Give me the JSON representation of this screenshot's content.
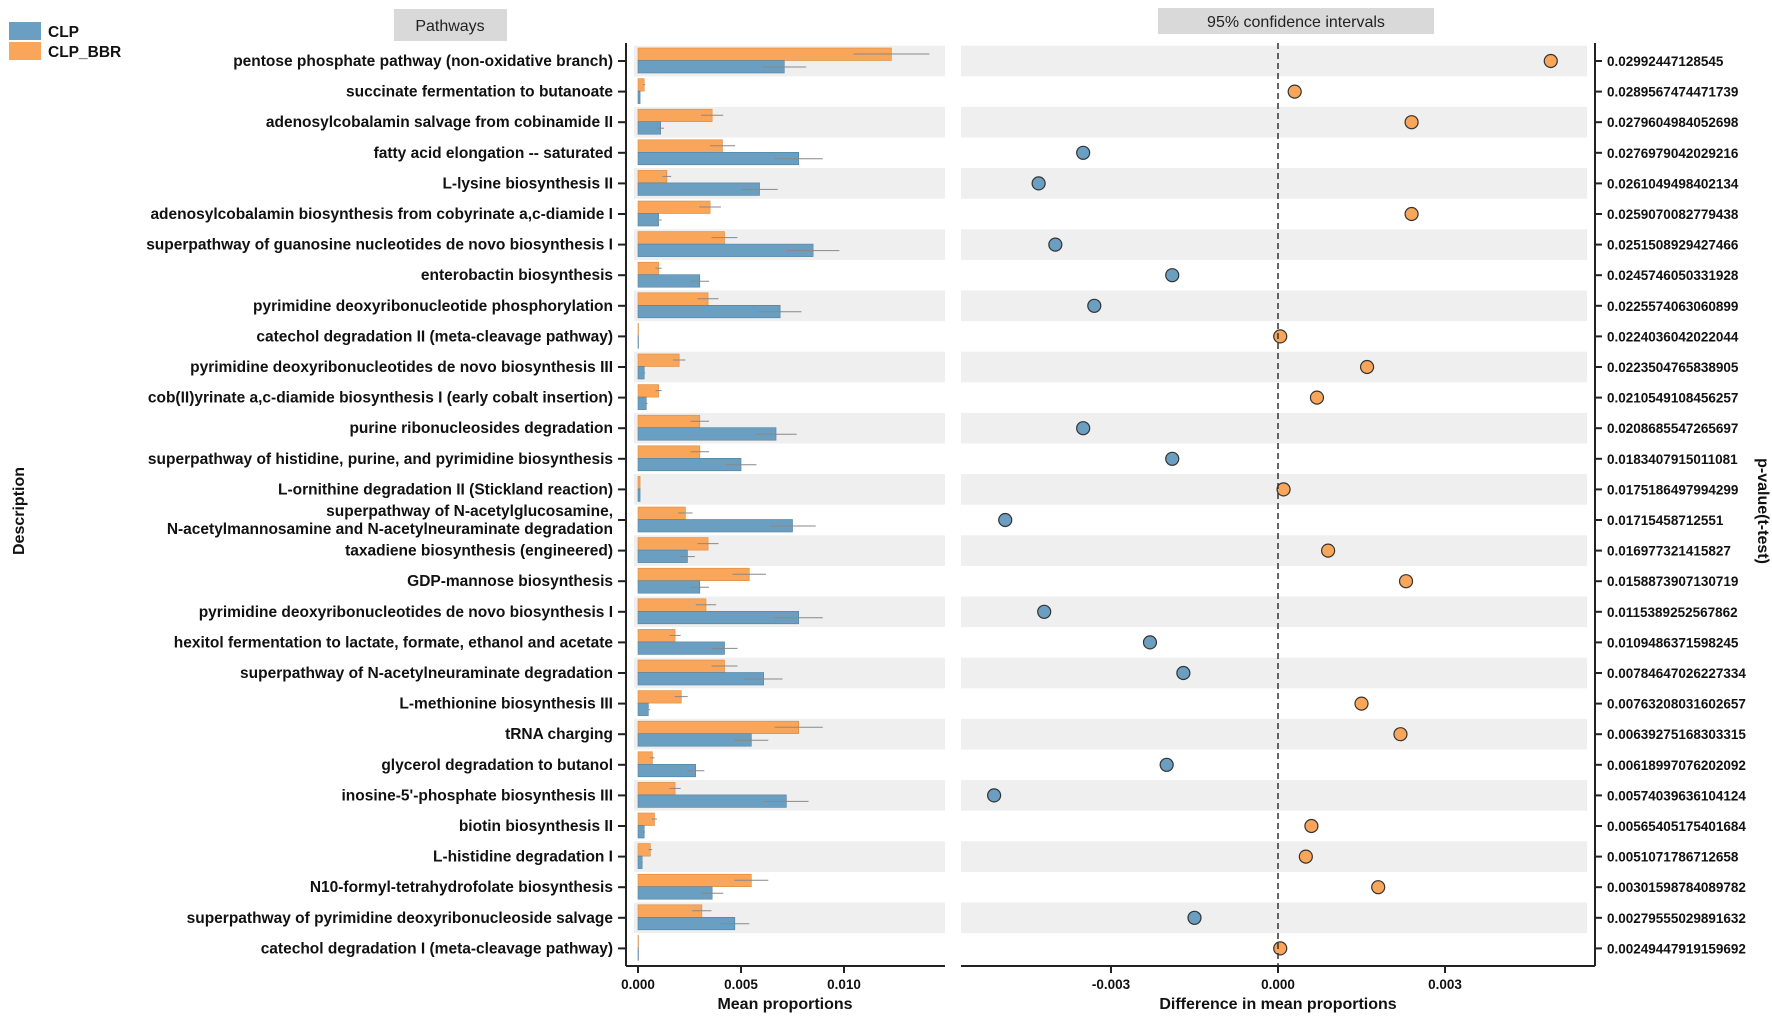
{
  "chart_data": {
    "type": "bar",
    "subtype": "extended-error-bar",
    "panel_headers": {
      "left": "Pathways",
      "right": "95% confidence intervals"
    },
    "legend": [
      {
        "name": "CLP",
        "color": "#6b9fc1"
      },
      {
        "name": "CLP_BBR",
        "color": "#f9a65a"
      }
    ],
    "ylabel": "Description",
    "left_xlabel": "Mean proportions",
    "left_xticks": [
      "0.000",
      "0.005",
      "0.010"
    ],
    "left_tick_values": [
      0,
      0.005,
      0.01
    ],
    "left_xlim": [
      0,
      0.0148
    ],
    "right_xlabel": "Difference in mean proportions",
    "right_xticks": [
      "-0.003",
      "0.000",
      "0.003"
    ],
    "right_tick_values": [
      -0.003,
      0,
      0.003
    ],
    "right_xlim": [
      -0.0056,
      0.0057
    ],
    "right_ylabel": "p-value(t-test)",
    "categories": [
      "pentose phosphate pathway (non-oxidative branch)",
      "succinate fermentation to butanoate",
      "adenosylcobalamin salvage from cobinamide II",
      "fatty acid elongation -- saturated",
      "L-lysine biosynthesis II",
      "adenosylcobalamin biosynthesis from cobyrinate a,c-diamide I",
      "superpathway of guanosine nucleotides de novo biosynthesis I",
      "enterobactin biosynthesis",
      "pyrimidine deoxyribonucleotide phosphorylation",
      "catechol degradation II (meta-cleavage pathway)",
      "pyrimidine deoxyribonucleotides de novo biosynthesis III",
      "cob(II)yrinate a,c-diamide biosynthesis I (early cobalt insertion)",
      "purine ribonucleosides degradation",
      "superpathway of histidine, purine, and pyrimidine biosynthesis",
      "L-ornithine degradation II (Stickland reaction)",
      "superpathway of N-acetylglucosamine,\nN-acetylmannosamine and N-acetylneuraminate degradation",
      "taxadiene biosynthesis (engineered)",
      "GDP-mannose biosynthesis",
      "pyrimidine deoxyribonucleotides de novo biosynthesis I",
      "hexitol fermentation to lactate, formate, ethanol and acetate",
      "superpathway of N-acetylneuraminate degradation",
      "L-methionine biosynthesis III",
      "tRNA charging",
      "glycerol degradation to butanol",
      "inosine-5'-phosphate biosynthesis III",
      "biotin biosynthesis II",
      "L-histidine degradation I",
      "N10-formyl-tetrahydrofolate biosynthesis",
      "superpathway of pyrimidine deoxyribonucleoside salvage",
      "catechol degradation I (meta-cleavage pathway)"
    ],
    "series": [
      {
        "name": "CLP_BBR",
        "values": [
          0.0123,
          0.0003,
          0.0036,
          0.0041,
          0.0014,
          0.0035,
          0.0042,
          0.001,
          0.0034,
          2e-05,
          0.002,
          0.001,
          0.003,
          0.003,
          0.0001,
          0.0023,
          0.0034,
          0.0054,
          0.0033,
          0.0018,
          0.0042,
          0.0021,
          0.0078,
          0.0007,
          0.0018,
          0.0008,
          0.0006,
          0.0055,
          0.0031,
          2e-05
        ]
      },
      {
        "name": "CLP",
        "values": [
          0.0071,
          0.0001,
          0.0011,
          0.0078,
          0.0059,
          0.001,
          0.0085,
          0.003,
          0.0069,
          2e-05,
          0.0003,
          0.0004,
          0.0067,
          0.005,
          0.0001,
          0.0075,
          0.0024,
          0.003,
          0.0078,
          0.0042,
          0.0061,
          0.0005,
          0.0055,
          0.0028,
          0.0072,
          0.0003,
          0.0002,
          0.0036,
          0.0047,
          2e-05
        ]
      }
    ],
    "difference": [
      0.0049,
      0.0003,
      0.0024,
      -0.0035,
      -0.0043,
      0.0024,
      -0.004,
      -0.0019,
      -0.0033,
      4e-05,
      0.0016,
      0.0007,
      -0.0035,
      -0.0019,
      0.0001,
      -0.0049,
      0.0009,
      0.0023,
      -0.0042,
      -0.0023,
      -0.0017,
      0.0015,
      0.0022,
      -0.002,
      -0.0051,
      0.0006,
      0.0005,
      0.0018,
      -0.0015,
      4e-05
    ],
    "p_values": [
      "0.02992447128545",
      "0.0289567474471739",
      "0.0279604984052698",
      "0.0276979042029216",
      "0.0261049498402134",
      "0.0259070082779438",
      "0.0251508929427466",
      "0.0245746050331928",
      "0.0225574063060899",
      "0.0224036042022044",
      "0.0223504765838905",
      "0.0210549108456257",
      "0.0208685547265697",
      "0.0183407915011081",
      "0.0175186497994299",
      "0.01715458712551",
      "0.016977321415827",
      "0.0158873907130719",
      "0.0115389252567862",
      "0.0109486371598245",
      "0.00784647026227334",
      "0.00763208031602657",
      "0.00639275168303315",
      "0.00618997076202092",
      "0.00574039636104124",
      "0.00565405175401684",
      "0.0051071786712658",
      "0.00301598784089782",
      "0.00279555029891632",
      "0.00249447919159692"
    ]
  }
}
